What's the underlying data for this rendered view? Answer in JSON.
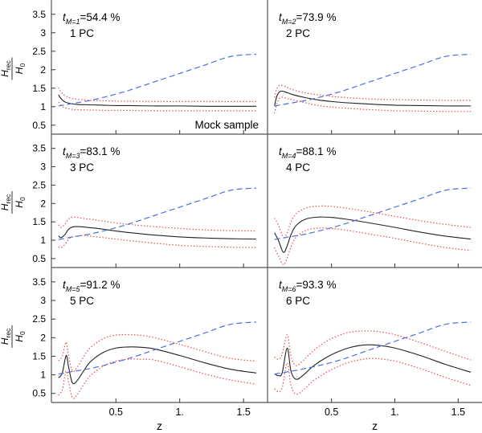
{
  "figure": {
    "xlabel": "z",
    "ylabel": {
      "num_base": "H",
      "num_sub": "rec",
      "den_base": "H",
      "den_sub": "0"
    },
    "mock_label": "Mock sample"
  },
  "chart_data": [
    {
      "type": "line",
      "panel": 1,
      "tM_index": "M=1",
      "tM_value": "=54.4 %",
      "pc_label": "1 PC",
      "xlim": [
        0.02,
        1.65
      ],
      "ylim": [
        0.3,
        3.8
      ],
      "x_ticks": [
        0.5,
        1.0,
        1.5
      ],
      "x_tick_labels": [
        "0.5",
        "1.",
        "1.5"
      ],
      "y_ticks": [
        0.5,
        1.0,
        1.5,
        2.0,
        2.5,
        3.0,
        3.5
      ],
      "y_tick_labels": [
        "0.5",
        "1",
        "1.5",
        "2",
        "2.5",
        "3",
        "3.5"
      ],
      "x": [
        0.05,
        0.07,
        0.1,
        0.15,
        0.2,
        0.3,
        0.4,
        0.5,
        0.6,
        0.8,
        1.0,
        1.2,
        1.4,
        1.6
      ],
      "series": [
        {
          "style": "solid",
          "color": "#222222",
          "values": [
            1.32,
            1.22,
            1.13,
            1.08,
            1.06,
            1.05,
            1.04,
            1.03,
            1.03,
            1.02,
            1.02,
            1.01,
            1.01,
            1.01
          ]
        },
        {
          "style": "dotted",
          "color": "#e8434a",
          "values": [
            1.52,
            1.4,
            1.3,
            1.23,
            1.2,
            1.17,
            1.16,
            1.15,
            1.15,
            1.14,
            1.14,
            1.14,
            1.14,
            1.14
          ]
        },
        {
          "style": "dotted",
          "color": "#e8434a",
          "values": [
            1.12,
            1.04,
            0.97,
            0.93,
            0.92,
            0.91,
            0.9,
            0.9,
            0.9,
            0.89,
            0.89,
            0.89,
            0.89,
            0.89
          ]
        },
        {
          "style": "dashed",
          "color": "#4f6fe0",
          "values": [
            1.02,
            1.03,
            1.05,
            1.08,
            1.11,
            1.17,
            1.25,
            1.34,
            1.44,
            1.67,
            1.9,
            2.13,
            2.36,
            2.42
          ]
        }
      ]
    },
    {
      "type": "line",
      "panel": 2,
      "tM_index": "M=2",
      "tM_value": "=73.9 %",
      "pc_label": "2 PC",
      "xlim": [
        0.02,
        1.65
      ],
      "ylim": [
        0.3,
        3.8
      ],
      "x_ticks": [
        0.5,
        1.0,
        1.5
      ],
      "x_tick_labels": [
        "0.5",
        "1.",
        "1.5"
      ],
      "y_ticks": [],
      "y_tick_labels": [],
      "x": [
        0.05,
        0.07,
        0.1,
        0.15,
        0.2,
        0.3,
        0.4,
        0.5,
        0.6,
        0.8,
        1.0,
        1.2,
        1.4,
        1.6
      ],
      "series": [
        {
          "style": "solid",
          "color": "#222222",
          "values": [
            1.02,
            1.3,
            1.42,
            1.38,
            1.32,
            1.24,
            1.18,
            1.14,
            1.11,
            1.07,
            1.04,
            1.03,
            1.02,
            1.02
          ]
        },
        {
          "style": "dotted",
          "color": "#e8434a",
          "values": [
            1.25,
            1.5,
            1.58,
            1.52,
            1.45,
            1.37,
            1.32,
            1.28,
            1.25,
            1.21,
            1.19,
            1.18,
            1.17,
            1.17
          ]
        },
        {
          "style": "dotted",
          "color": "#e8434a",
          "values": [
            0.82,
            1.1,
            1.25,
            1.22,
            1.18,
            1.1,
            1.03,
            0.99,
            0.96,
            0.92,
            0.89,
            0.88,
            0.87,
            0.87
          ]
        },
        {
          "style": "dashed",
          "color": "#4f6fe0",
          "values": [
            1.02,
            1.03,
            1.05,
            1.08,
            1.11,
            1.17,
            1.25,
            1.34,
            1.44,
            1.67,
            1.9,
            2.13,
            2.36,
            2.42
          ]
        }
      ]
    },
    {
      "type": "line",
      "panel": 3,
      "tM_index": "M=3",
      "tM_value": "=83.1 %",
      "pc_label": "3 PC",
      "xlim": [
        0.02,
        1.65
      ],
      "ylim": [
        0.3,
        3.8
      ],
      "x_ticks": [
        0.5,
        1.0,
        1.5
      ],
      "x_tick_labels": [
        "0.5",
        "1.",
        "1.5"
      ],
      "y_ticks": [
        0.5,
        1.0,
        1.5,
        2.0,
        2.5,
        3.0,
        3.5
      ],
      "y_tick_labels": [
        "0.5",
        "1",
        "1.5",
        "2",
        "2.5",
        "3",
        "3.5"
      ],
      "x": [
        0.05,
        0.07,
        0.1,
        0.13,
        0.16,
        0.2,
        0.25,
        0.3,
        0.4,
        0.5,
        0.6,
        0.8,
        1.0,
        1.2,
        1.4,
        1.6
      ],
      "series": [
        {
          "style": "solid",
          "color": "#222222",
          "values": [
            1.12,
            1.07,
            1.15,
            1.3,
            1.36,
            1.37,
            1.36,
            1.34,
            1.3,
            1.25,
            1.21,
            1.14,
            1.09,
            1.06,
            1.04,
            1.03
          ]
        },
        {
          "style": "dotted",
          "color": "#e8434a",
          "values": [
            1.42,
            1.35,
            1.43,
            1.58,
            1.63,
            1.62,
            1.59,
            1.57,
            1.52,
            1.47,
            1.43,
            1.37,
            1.32,
            1.28,
            1.26,
            1.25
          ]
        },
        {
          "style": "dotted",
          "color": "#e8434a",
          "values": [
            0.82,
            0.8,
            0.88,
            1.03,
            1.09,
            1.12,
            1.13,
            1.11,
            1.07,
            1.03,
            0.99,
            0.92,
            0.86,
            0.83,
            0.81,
            0.8
          ]
        },
        {
          "style": "dashed",
          "color": "#4f6fe0",
          "values": [
            1.02,
            1.03,
            1.05,
            1.07,
            1.09,
            1.11,
            1.14,
            1.17,
            1.25,
            1.34,
            1.44,
            1.67,
            1.9,
            2.13,
            2.36,
            2.42
          ]
        }
      ]
    },
    {
      "type": "line",
      "panel": 4,
      "tM_index": "M=4",
      "tM_value": "=88.1 %",
      "pc_label": "4 PC",
      "xlim": [
        0.02,
        1.65
      ],
      "ylim": [
        0.3,
        3.8
      ],
      "x_ticks": [
        0.5,
        1.0,
        1.5
      ],
      "x_tick_labels": [
        "0.5",
        "1.",
        "1.5"
      ],
      "y_ticks": [],
      "y_tick_labels": [],
      "x": [
        0.05,
        0.08,
        0.12,
        0.15,
        0.18,
        0.22,
        0.3,
        0.4,
        0.5,
        0.6,
        0.8,
        1.0,
        1.2,
        1.4,
        1.6
      ],
      "series": [
        {
          "style": "solid",
          "color": "#222222",
          "values": [
            1.2,
            1.0,
            0.67,
            0.85,
            1.15,
            1.4,
            1.58,
            1.63,
            1.62,
            1.58,
            1.47,
            1.35,
            1.22,
            1.11,
            1.03
          ]
        },
        {
          "style": "dotted",
          "color": "#e8434a",
          "values": [
            1.6,
            1.42,
            1.08,
            1.2,
            1.5,
            1.72,
            1.88,
            1.93,
            1.92,
            1.88,
            1.77,
            1.65,
            1.53,
            1.43,
            1.35
          ]
        },
        {
          "style": "dotted",
          "color": "#e8434a",
          "values": [
            0.8,
            0.58,
            0.33,
            0.52,
            0.82,
            1.08,
            1.27,
            1.33,
            1.32,
            1.28,
            1.17,
            1.05,
            0.92,
            0.8,
            0.72
          ]
        },
        {
          "style": "dashed",
          "color": "#4f6fe0",
          "values": [
            1.02,
            1.04,
            1.06,
            1.08,
            1.1,
            1.12,
            1.17,
            1.25,
            1.34,
            1.44,
            1.67,
            1.9,
            2.13,
            2.36,
            2.42
          ]
        }
      ]
    },
    {
      "type": "line",
      "panel": 5,
      "tM_index": "M=5",
      "tM_value": "=91.2 %",
      "pc_label": "5 PC",
      "xlim": [
        0.02,
        1.65
      ],
      "ylim": [
        0.3,
        3.8
      ],
      "x_ticks": [
        0.5,
        1.0,
        1.5
      ],
      "x_tick_labels": [
        "0.5",
        "1.",
        "1.5"
      ],
      "y_ticks": [
        0.5,
        1.0,
        1.5,
        2.0,
        2.5,
        3.0,
        3.5
      ],
      "y_tick_labels": [
        "0.5",
        "1",
        "1.5",
        "2",
        "2.5",
        "3",
        "3.5"
      ],
      "x": [
        0.05,
        0.08,
        0.11,
        0.13,
        0.16,
        0.2,
        0.25,
        0.3,
        0.4,
        0.5,
        0.6,
        0.7,
        0.8,
        1.0,
        1.2,
        1.4,
        1.6
      ],
      "series": [
        {
          "style": "solid",
          "color": "#222222",
          "values": [
            0.92,
            1.05,
            1.52,
            1.2,
            0.78,
            0.86,
            1.12,
            1.35,
            1.6,
            1.72,
            1.75,
            1.74,
            1.7,
            1.52,
            1.32,
            1.15,
            1.05
          ]
        },
        {
          "style": "dotted",
          "color": "#e8434a",
          "values": [
            1.38,
            1.5,
            1.88,
            1.5,
            1.1,
            1.22,
            1.5,
            1.73,
            1.97,
            2.07,
            2.08,
            2.06,
            2.0,
            1.82,
            1.62,
            1.44,
            1.37
          ]
        },
        {
          "style": "dotted",
          "color": "#e8434a",
          "values": [
            0.45,
            0.6,
            1.1,
            0.8,
            0.38,
            0.48,
            0.75,
            0.98,
            1.23,
            1.37,
            1.42,
            1.42,
            1.4,
            1.22,
            1.02,
            0.86,
            0.75
          ]
        },
        {
          "style": "dashed",
          "color": "#4f6fe0",
          "values": [
            1.02,
            1.04,
            1.05,
            1.07,
            1.09,
            1.11,
            1.14,
            1.17,
            1.25,
            1.34,
            1.44,
            1.55,
            1.67,
            1.9,
            2.13,
            2.36,
            2.42
          ]
        }
      ]
    },
    {
      "type": "line",
      "panel": 6,
      "tM_index": "M=6",
      "tM_value": "=93.3 %",
      "pc_label": "6 PC",
      "xlim": [
        0.02,
        1.65
      ],
      "ylim": [
        0.3,
        3.8
      ],
      "x_ticks": [
        0.5,
        1.0,
        1.5
      ],
      "x_tick_labels": [
        "0.5",
        "1.",
        "1.5"
      ],
      "y_ticks": [],
      "y_tick_labels": [],
      "x": [
        0.05,
        0.08,
        0.11,
        0.15,
        0.18,
        0.22,
        0.28,
        0.35,
        0.45,
        0.55,
        0.65,
        0.75,
        0.85,
        1.0,
        1.2,
        1.4,
        1.6
      ],
      "series": [
        {
          "style": "solid",
          "color": "#222222",
          "values": [
            1.03,
            0.98,
            1.05,
            1.72,
            1.1,
            0.88,
            1.0,
            1.22,
            1.45,
            1.62,
            1.74,
            1.8,
            1.8,
            1.72,
            1.52,
            1.28,
            1.07
          ]
        },
        {
          "style": "dotted",
          "color": "#e8434a",
          "values": [
            1.48,
            1.42,
            1.55,
            2.08,
            1.5,
            1.25,
            1.4,
            1.63,
            1.88,
            2.05,
            2.15,
            2.18,
            2.17,
            2.08,
            1.87,
            1.63,
            1.4
          ]
        },
        {
          "style": "dotted",
          "color": "#e8434a",
          "values": [
            0.62,
            0.55,
            0.65,
            1.32,
            0.72,
            0.48,
            0.6,
            0.82,
            1.05,
            1.22,
            1.35,
            1.42,
            1.44,
            1.37,
            1.17,
            0.93,
            0.72
          ]
        },
        {
          "style": "dashed",
          "color": "#4f6fe0",
          "values": [
            1.02,
            1.04,
            1.05,
            1.08,
            1.1,
            1.12,
            1.16,
            1.21,
            1.29,
            1.38,
            1.49,
            1.61,
            1.73,
            1.9,
            2.13,
            2.36,
            2.42
          ]
        }
      ]
    }
  ]
}
